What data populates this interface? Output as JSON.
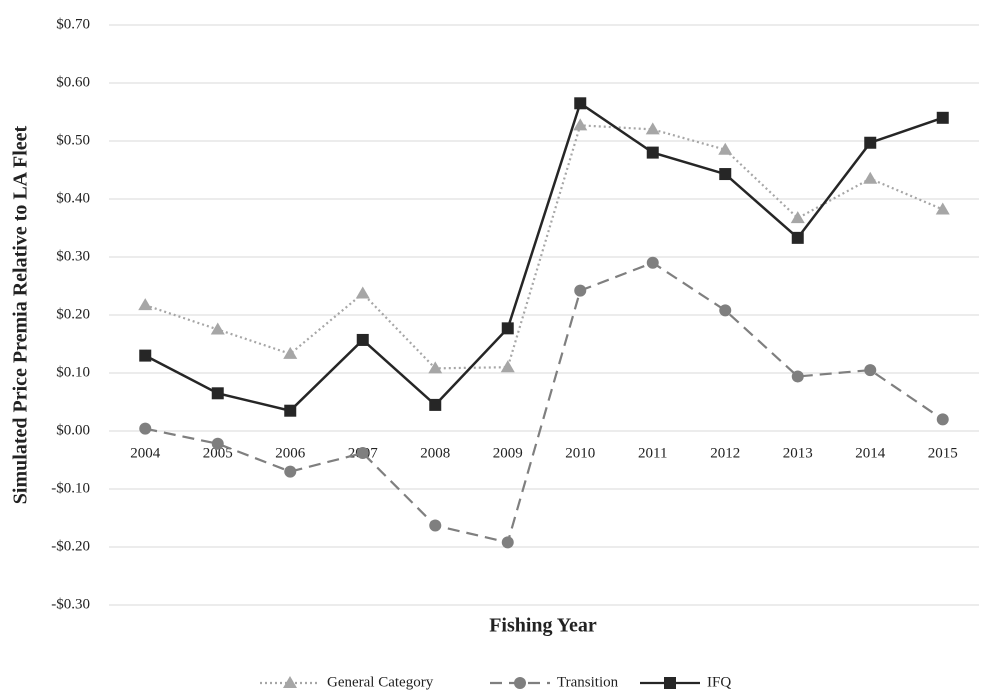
{
  "chart_data": {
    "type": "line",
    "x_label": "Fishing Year",
    "y_label": "Simulated Price Premia Relative to LA Fleet",
    "categories": [
      "2004",
      "2005",
      "2006",
      "2007",
      "2008",
      "2009",
      "2010",
      "2011",
      "2012",
      "2013",
      "2014",
      "2015"
    ],
    "series": [
      {
        "name": "General Category",
        "color": "#a6a6a6",
        "dash": "dotted",
        "marker": "triangle",
        "values": [
          0.217,
          0.175,
          0.133,
          0.237,
          0.108,
          0.11,
          0.527,
          0.52,
          0.485,
          0.367,
          0.435,
          0.382
        ]
      },
      {
        "name": "Transition",
        "color": "#7f7f7f",
        "dash": "dashed",
        "marker": "circle",
        "values": [
          0.004,
          -0.022,
          -0.07,
          -0.038,
          -0.163,
          -0.192,
          0.242,
          0.29,
          0.208,
          0.094,
          0.105,
          0.02
        ]
      },
      {
        "name": "IFQ",
        "color": "#262626",
        "dash": "solid",
        "marker": "square",
        "values": [
          0.13,
          0.065,
          0.035,
          0.157,
          0.045,
          0.177,
          0.565,
          0.48,
          0.443,
          0.333,
          0.497,
          0.54
        ]
      }
    ],
    "ylim": [
      -0.3,
      0.7
    ],
    "yticks": [
      {
        "value": -0.3,
        "label": "-$0.30"
      },
      {
        "value": -0.2,
        "label": "-$0.20"
      },
      {
        "value": -0.1,
        "label": "-$0.10"
      },
      {
        "value": 0,
        "label": "$0.00"
      },
      {
        "value": 0.1,
        "label": "$0.10"
      },
      {
        "value": 0.2,
        "label": "$0.20"
      },
      {
        "value": 0.3,
        "label": "$0.30"
      },
      {
        "value": 0.4,
        "label": "$0.40"
      },
      {
        "value": 0.5,
        "label": "$0.50"
      },
      {
        "value": 0.6,
        "label": "$0.60"
      },
      {
        "value": 0.7,
        "label": "$0.70"
      }
    ],
    "grid": true,
    "legend": "bottom"
  }
}
